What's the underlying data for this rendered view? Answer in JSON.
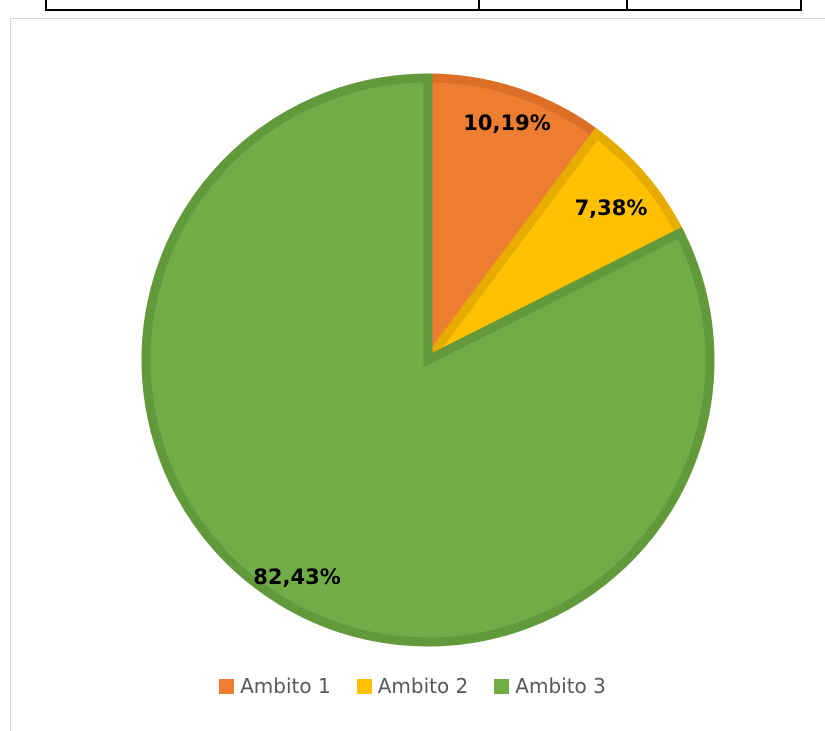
{
  "chart_data": {
    "type": "pie",
    "categories": [
      "Ambito 1",
      "Ambito 2",
      "Ambito 3"
    ],
    "values": [
      10.19,
      7.38,
      82.43
    ],
    "labels": [
      "10,19%",
      "7,38%",
      "82,43%"
    ],
    "colors": [
      "#ed7d31",
      "#ffc000",
      "#70ad47"
    ],
    "border_colors": [
      "#dd6e28",
      "#e6ad00",
      "#62993b"
    ],
    "legend_position": "bottom",
    "start_angle": "12 o'clock",
    "direction": "clockwise"
  }
}
